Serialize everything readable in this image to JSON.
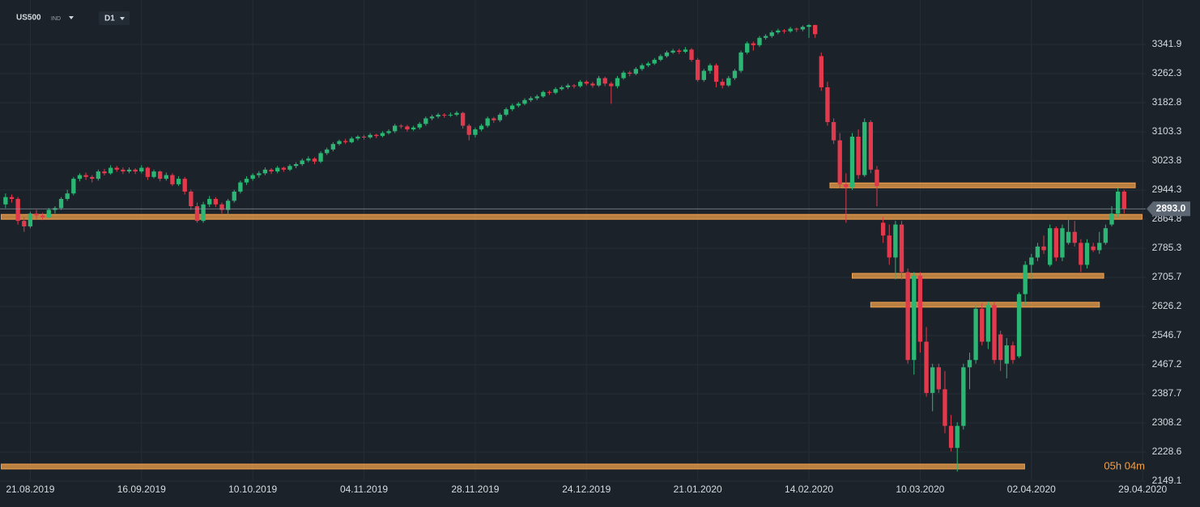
{
  "header": {
    "symbol": "US500",
    "symbol_type": "IND",
    "timeframe": "D1"
  },
  "chart_data": {
    "type": "candlestick",
    "up_color": "#2bb673",
    "down_color": "#e23a4c",
    "level_color": "#f0a04b",
    "grid": true,
    "ylim": [
      2149.1,
      3463.4
    ],
    "yticks": [
      3341.9,
      3262.3,
      3182.8,
      3103.3,
      3023.8,
      2944.3,
      2864.8,
      2785.3,
      2705.7,
      2626.2,
      2546.7,
      2467.2,
      2387.7,
      2308.2,
      2228.6,
      2149.1
    ],
    "xlim": [
      -0.9,
      184.5
    ],
    "xticks": [
      {
        "value": 4,
        "label": "21.08.2019"
      },
      {
        "value": 22,
        "label": "16.09.2019"
      },
      {
        "value": 40,
        "label": "10.10.2019"
      },
      {
        "value": 58,
        "label": "04.11.2019"
      },
      {
        "value": 76,
        "label": "28.11.2019"
      },
      {
        "value": 94,
        "label": "24.12.2019"
      },
      {
        "value": 112,
        "label": "21.01.2020"
      },
      {
        "value": 130,
        "label": "14.02.2020"
      },
      {
        "value": 148,
        "label": "10.03.2020"
      },
      {
        "value": 166,
        "label": "02.04.2020"
      },
      {
        "value": 184,
        "label": "29.04.2020"
      }
    ],
    "last_price": {
      "value": 2893.0,
      "label": "2893.0"
    },
    "countdown": "05h 04m",
    "levels": [
      {
        "price": 2957,
        "from": 133.4,
        "to": 182.8
      },
      {
        "price": 2871,
        "from": -0.7,
        "to": 183.9
      },
      {
        "price": 2710,
        "from": 137,
        "to": 177.7
      },
      {
        "price": 2631,
        "from": 140,
        "to": 177
      },
      {
        "price": 2189,
        "from": -0.7,
        "to": 164.9
      }
    ],
    "candles": [
      [
        2905,
        2935,
        2895,
        2925
      ],
      [
        2925,
        2932,
        2910,
        2920
      ],
      [
        2920,
        2925,
        2850,
        2860
      ],
      [
        2860,
        2870,
        2830,
        2845
      ],
      [
        2845,
        2885,
        2840,
        2880
      ],
      [
        2880,
        2890,
        2865,
        2875
      ],
      [
        2875,
        2882,
        2862,
        2870
      ],
      [
        2870,
        2895,
        2868,
        2890
      ],
      [
        2890,
        2900,
        2880,
        2895
      ],
      [
        2895,
        2925,
        2890,
        2920
      ],
      [
        2920,
        2945,
        2915,
        2935
      ],
      [
        2935,
        2980,
        2930,
        2975
      ],
      [
        2975,
        2990,
        2968,
        2985
      ],
      [
        2985,
        2992,
        2972,
        2980
      ],
      [
        2980,
        2985,
        2965,
        2975
      ],
      [
        2975,
        3000,
        2970,
        2995
      ],
      [
        2995,
        3002,
        2984,
        2990
      ],
      [
        2990,
        3012,
        2986,
        3005
      ],
      [
        3005,
        3010,
        2994,
        3000
      ],
      [
        3000,
        3006,
        2988,
        2995
      ],
      [
        2995,
        3006,
        2990,
        3000
      ],
      [
        3000,
        3004,
        2988,
        2995
      ],
      [
        2995,
        3012,
        2990,
        3005
      ],
      [
        3005,
        3008,
        2972,
        2980
      ],
      [
        2980,
        3000,
        2976,
        2995
      ],
      [
        2995,
        2998,
        2968,
        2975
      ],
      [
        2975,
        2992,
        2970,
        2985
      ],
      [
        2985,
        2990,
        2955,
        2960
      ],
      [
        2960,
        2982,
        2955,
        2975
      ],
      [
        2975,
        2980,
        2932,
        2940
      ],
      [
        2940,
        2945,
        2890,
        2900
      ],
      [
        2900,
        2910,
        2855,
        2860
      ],
      [
        2860,
        2912,
        2855,
        2905
      ],
      [
        2905,
        2928,
        2898,
        2920
      ],
      [
        2920,
        2925,
        2898,
        2905
      ],
      [
        2905,
        2910,
        2880,
        2890
      ],
      [
        2890,
        2920,
        2875,
        2915
      ],
      [
        2915,
        2945,
        2910,
        2940
      ],
      [
        2940,
        2970,
        2935,
        2965
      ],
      [
        2965,
        2982,
        2958,
        2975
      ],
      [
        2975,
        2990,
        2970,
        2985
      ],
      [
        2985,
        2996,
        2978,
        2990
      ],
      [
        2990,
        3006,
        2985,
        3000
      ],
      [
        3000,
        3004,
        2988,
        2995
      ],
      [
        2995,
        3010,
        2990,
        3005
      ],
      [
        3005,
        3008,
        2994,
        3000
      ],
      [
        3000,
        3015,
        2996,
        3010
      ],
      [
        3010,
        3020,
        3004,
        3015
      ],
      [
        3015,
        3030,
        3010,
        3025
      ],
      [
        3025,
        3036,
        3020,
        3030
      ],
      [
        3030,
        3034,
        3015,
        3022
      ],
      [
        3022,
        3050,
        3018,
        3045
      ],
      [
        3045,
        3060,
        3040,
        3055
      ],
      [
        3055,
        3075,
        3050,
        3070
      ],
      [
        3070,
        3082,
        3066,
        3078
      ],
      [
        3078,
        3084,
        3070,
        3075
      ],
      [
        3075,
        3090,
        3072,
        3085
      ],
      [
        3085,
        3094,
        3080,
        3090
      ],
      [
        3090,
        3095,
        3082,
        3088
      ],
      [
        3088,
        3100,
        3084,
        3095
      ],
      [
        3095,
        3098,
        3086,
        3092
      ],
      [
        3092,
        3105,
        3088,
        3100
      ],
      [
        3100,
        3110,
        3096,
        3105
      ],
      [
        3105,
        3125,
        3100,
        3120
      ],
      [
        3120,
        3124,
        3112,
        3118
      ],
      [
        3118,
        3122,
        3104,
        3110
      ],
      [
        3110,
        3120,
        3106,
        3115
      ],
      [
        3115,
        3130,
        3110,
        3125
      ],
      [
        3125,
        3145,
        3120,
        3140
      ],
      [
        3140,
        3150,
        3135,
        3145
      ],
      [
        3145,
        3155,
        3140,
        3150
      ],
      [
        3150,
        3154,
        3142,
        3148
      ],
      [
        3148,
        3156,
        3144,
        3150
      ],
      [
        3150,
        3160,
        3146,
        3155
      ],
      [
        3155,
        3158,
        3112,
        3120
      ],
      [
        3120,
        3125,
        3080,
        3095
      ],
      [
        3095,
        3115,
        3088,
        3110
      ],
      [
        3110,
        3125,
        3105,
        3120
      ],
      [
        3120,
        3145,
        3115,
        3140
      ],
      [
        3140,
        3144,
        3128,
        3135
      ],
      [
        3135,
        3155,
        3130,
        3150
      ],
      [
        3150,
        3170,
        3146,
        3165
      ],
      [
        3165,
        3180,
        3160,
        3175
      ],
      [
        3175,
        3185,
        3170,
        3180
      ],
      [
        3180,
        3195,
        3176,
        3190
      ],
      [
        3190,
        3200,
        3185,
        3195
      ],
      [
        3195,
        3205,
        3190,
        3200
      ],
      [
        3200,
        3216,
        3196,
        3212
      ],
      [
        3212,
        3216,
        3204,
        3210
      ],
      [
        3210,
        3225,
        3206,
        3220
      ],
      [
        3220,
        3230,
        3216,
        3225
      ],
      [
        3225,
        3235,
        3220,
        3230
      ],
      [
        3230,
        3234,
        3222,
        3228
      ],
      [
        3228,
        3245,
        3224,
        3240
      ],
      [
        3240,
        3244,
        3230,
        3235
      ],
      [
        3235,
        3240,
        3224,
        3230
      ],
      [
        3230,
        3256,
        3226,
        3250
      ],
      [
        3250,
        3254,
        3228,
        3235
      ],
      [
        3235,
        3240,
        3180,
        3228
      ],
      [
        3228,
        3256,
        3222,
        3250
      ],
      [
        3250,
        3270,
        3246,
        3265
      ],
      [
        3265,
        3270,
        3255,
        3262
      ],
      [
        3262,
        3280,
        3258,
        3275
      ],
      [
        3275,
        3290,
        3270,
        3285
      ],
      [
        3285,
        3295,
        3280,
        3290
      ],
      [
        3290,
        3305,
        3286,
        3300
      ],
      [
        3300,
        3315,
        3296,
        3310
      ],
      [
        3310,
        3325,
        3306,
        3320
      ],
      [
        3320,
        3330,
        3316,
        3325
      ],
      [
        3325,
        3330,
        3316,
        3322
      ],
      [
        3322,
        3335,
        3318,
        3328
      ],
      [
        3328,
        3332,
        3295,
        3300
      ],
      [
        3300,
        3305,
        3240,
        3245
      ],
      [
        3245,
        3275,
        3240,
        3270
      ],
      [
        3270,
        3290,
        3262,
        3285
      ],
      [
        3285,
        3290,
        3225,
        3240
      ],
      [
        3240,
        3248,
        3222,
        3230
      ],
      [
        3230,
        3256,
        3226,
        3250
      ],
      [
        3250,
        3275,
        3245,
        3270
      ],
      [
        3270,
        3325,
        3265,
        3320
      ],
      [
        3320,
        3350,
        3315,
        3345
      ],
      [
        3345,
        3350,
        3325,
        3340
      ],
      [
        3340,
        3365,
        3335,
        3360
      ],
      [
        3360,
        3370,
        3355,
        3365
      ],
      [
        3365,
        3380,
        3360,
        3375
      ],
      [
        3375,
        3385,
        3370,
        3380
      ],
      [
        3380,
        3384,
        3372,
        3378
      ],
      [
        3378,
        3390,
        3374,
        3385
      ],
      [
        3385,
        3388,
        3376,
        3383
      ],
      [
        3383,
        3394,
        3378,
        3390
      ],
      [
        3390,
        3398,
        3360,
        3395
      ],
      [
        3395,
        3396,
        3360,
        3370
      ],
      [
        3310,
        3320,
        3215,
        3225
      ],
      [
        3225,
        3240,
        3120,
        3130
      ],
      [
        3130,
        3140,
        3070,
        3080
      ],
      [
        3080,
        3100,
        2950,
        2960
      ],
      [
        2960,
        2990,
        2855,
        2952
      ],
      [
        2952,
        3100,
        2945,
        3090
      ],
      [
        3090,
        3110,
        2975,
        2985
      ],
      [
        2985,
        3140,
        2980,
        3130
      ],
      [
        3130,
        3135,
        2990,
        3000
      ],
      [
        3000,
        3010,
        2900,
        2955
      ],
      [
        2855,
        2870,
        2800,
        2820
      ],
      [
        2820,
        2850,
        2740,
        2760
      ],
      [
        2760,
        2860,
        2700,
        2850
      ],
      [
        2850,
        2860,
        2700,
        2720
      ],
      [
        2720,
        2730,
        2470,
        2480
      ],
      [
        2480,
        2720,
        2440,
        2710
      ],
      [
        2710,
        2720,
        2500,
        2530
      ],
      [
        2530,
        2570,
        2380,
        2390
      ],
      [
        2390,
        2470,
        2340,
        2460
      ],
      [
        2460,
        2470,
        2390,
        2400
      ],
      [
        2400,
        2450,
        2280,
        2300
      ],
      [
        2300,
        2330,
        2230,
        2240
      ],
      [
        2240,
        2310,
        2175,
        2300
      ],
      [
        2300,
        2470,
        2290,
        2460
      ],
      [
        2460,
        2500,
        2400,
        2480
      ],
      [
        2480,
        2630,
        2470,
        2620
      ],
      [
        2620,
        2635,
        2520,
        2530
      ],
      [
        2530,
        2640,
        2510,
        2630
      ],
      [
        2630,
        2640,
        2470,
        2480
      ],
      [
        2550,
        2560,
        2450,
        2480
      ],
      [
        2470,
        2540,
        2430,
        2520
      ],
      [
        2520,
        2530,
        2470,
        2480
      ],
      [
        2490,
        2665,
        2485,
        2660
      ],
      [
        2660,
        2750,
        2630,
        2740
      ],
      [
        2740,
        2770,
        2700,
        2760
      ],
      [
        2760,
        2800,
        2750,
        2790
      ],
      [
        2790,
        2820,
        2770,
        2780
      ],
      [
        2740,
        2850,
        2735,
        2840
      ],
      [
        2840,
        2845,
        2750,
        2760
      ],
      [
        2760,
        2850,
        2750,
        2840
      ],
      [
        2800,
        2875,
        2795,
        2830
      ],
      [
        2830,
        2860,
        2790,
        2800
      ],
      [
        2800,
        2810,
        2720,
        2740
      ],
      [
        2740,
        2810,
        2730,
        2800
      ],
      [
        2790,
        2800,
        2775,
        2780
      ],
      [
        2780,
        2830,
        2770,
        2800
      ],
      [
        2800,
        2850,
        2795,
        2840
      ],
      [
        2850,
        2900,
        2845,
        2880
      ],
      [
        2880,
        2950,
        2870,
        2940
      ],
      [
        2940,
        2945,
        2880,
        2893
      ]
    ]
  }
}
